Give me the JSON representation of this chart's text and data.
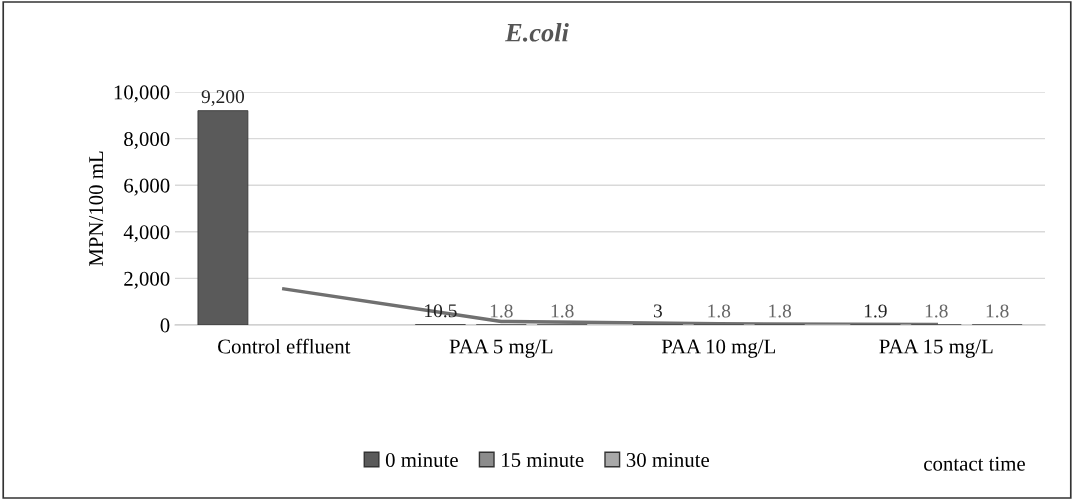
{
  "chart_data": {
    "type": "bar",
    "title": "E.coli",
    "ylabel": "MPN/100 mL",
    "categories": [
      "Control effluent",
      "PAA 5 mg/L",
      "PAA 10 mg/L",
      "PAA 15 mg/L"
    ],
    "series": [
      {
        "name": "0 minute",
        "color": "#5a5a5a",
        "values": [
          9200,
          10.5,
          3,
          1.9
        ],
        "value_labels": [
          "9,200",
          "10.5",
          "3",
          "1.9"
        ]
      },
      {
        "name": "15 minute",
        "color": "#8c8c8c",
        "values": [
          null,
          1.8,
          1.8,
          1.8
        ],
        "value_labels": [
          null,
          "1.8",
          "1.8",
          "1.8"
        ]
      },
      {
        "name": "30 minute",
        "color": "#a8a8a8",
        "values": [
          null,
          1.8,
          1.8,
          1.8
        ],
        "value_labels": [
          null,
          "1.8",
          "1.8",
          "1.8"
        ]
      },
      {
        "type": "line",
        "color": "#707070",
        "values": [
          1550,
          150,
          50,
          20
        ]
      }
    ],
    "ylim": [
      0,
      10000
    ],
    "yticks": [
      {
        "value": 0,
        "label": "0"
      },
      {
        "value": 2000,
        "label": "2,000"
      },
      {
        "value": 4000,
        "label": "4,000"
      },
      {
        "value": 6000,
        "label": "6,000"
      },
      {
        "value": 8000,
        "label": "8,000"
      },
      {
        "value": 10000,
        "label": "10,000"
      }
    ],
    "grid": "y",
    "legend": "bottom",
    "annotations": [
      "contact time"
    ]
  }
}
